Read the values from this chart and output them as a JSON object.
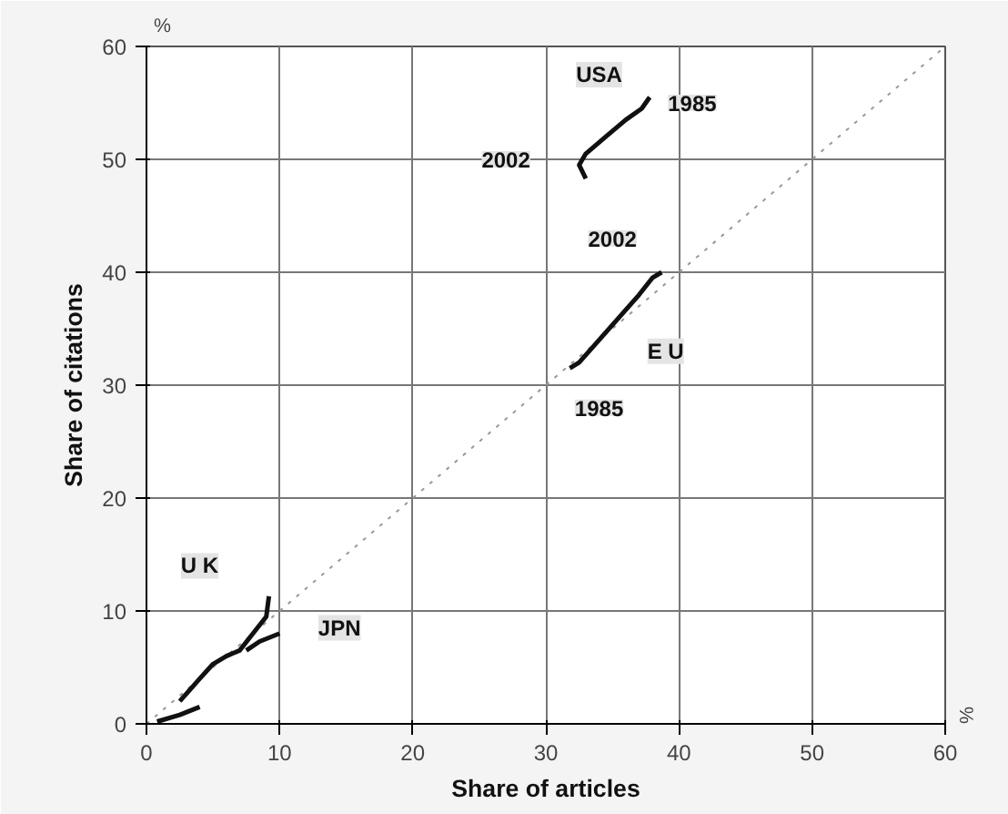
{
  "chart_data": {
    "type": "line",
    "xlabel": "Share of articles",
    "ylabel": "Share of citations",
    "xlim": [
      0,
      60
    ],
    "ylim": [
      0,
      60
    ],
    "xticks": [
      0,
      10,
      20,
      30,
      40,
      50,
      60
    ],
    "yticks": [
      0,
      10,
      20,
      30,
      40,
      50,
      60
    ],
    "grid": true,
    "line_style": "solid",
    "series": [
      {
        "color": "#999999",
        "line_style": "dotted",
        "x": [
          0,
          60
        ],
        "values": [
          0,
          60
        ]
      },
      {
        "color": "#111111",
        "x": [
          37.8,
          37.2,
          36.0,
          34.5,
          33.0,
          32.5,
          33.0
        ],
        "values": [
          55.5,
          54.5,
          53.5,
          52.0,
          50.5,
          49.5,
          48.3
        ]
      },
      {
        "color": "#111111",
        "x": [
          31.8,
          32.5,
          34.0,
          35.5,
          37.0,
          38.0,
          38.7
        ],
        "values": [
          31.5,
          32.0,
          34.0,
          36.0,
          38.0,
          39.5,
          40.0
        ]
      },
      {
        "color": "#111111",
        "x": [
          2.5,
          4.0,
          5.0,
          6.0,
          7.0,
          8.0,
          9.0,
          9.2
        ],
        "values": [
          2.0,
          4.0,
          5.3,
          6.0,
          6.5,
          8.0,
          9.5,
          11.3
        ]
      },
      {
        "color": "#111111",
        "x": [
          0.8,
          2.5,
          4.0
        ],
        "values": [
          0.2,
          0.8,
          1.5
        ]
      },
      {
        "color": "#111111",
        "x": [
          7.5,
          8.5,
          10.0
        ],
        "values": [
          6.5,
          7.3,
          8.0
        ]
      }
    ],
    "annotations": [
      {
        "text": "USA",
        "x": 34,
        "y": 57.5
      },
      {
        "text": "1985",
        "x": 41,
        "y": 55
      },
      {
        "text": "2002",
        "x": 27,
        "y": 50
      },
      {
        "text": "2002",
        "x": 35,
        "y": 43
      },
      {
        "text": "E U",
        "x": 39,
        "y": 33
      },
      {
        "text": "1985",
        "x": 34,
        "y": 28
      },
      {
        "text": "U K",
        "x": 4,
        "y": 14
      },
      {
        "text": "JPN",
        "x": 14.5,
        "y": 8.5
      },
      "%",
      "%"
    ]
  }
}
